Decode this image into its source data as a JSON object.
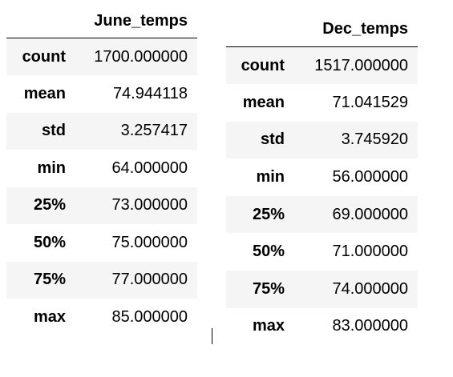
{
  "tables": [
    {
      "column": "June_temps",
      "rows": [
        {
          "label": "count",
          "value": "1700.000000"
        },
        {
          "label": "mean",
          "value": "74.944118"
        },
        {
          "label": "std",
          "value": "3.257417"
        },
        {
          "label": "min",
          "value": "64.000000"
        },
        {
          "label": "25%",
          "value": "73.000000"
        },
        {
          "label": "50%",
          "value": "75.000000"
        },
        {
          "label": "75%",
          "value": "77.000000"
        },
        {
          "label": "max",
          "value": "85.000000"
        }
      ]
    },
    {
      "column": "Dec_temps",
      "rows": [
        {
          "label": "count",
          "value": "1517.000000"
        },
        {
          "label": "mean",
          "value": "71.041529"
        },
        {
          "label": "std",
          "value": "3.745920"
        },
        {
          "label": "min",
          "value": "56.000000"
        },
        {
          "label": "25%",
          "value": "69.000000"
        },
        {
          "label": "50%",
          "value": "71.000000"
        },
        {
          "label": "75%",
          "value": "74.000000"
        },
        {
          "label": "max",
          "value": "83.000000"
        }
      ]
    }
  ]
}
